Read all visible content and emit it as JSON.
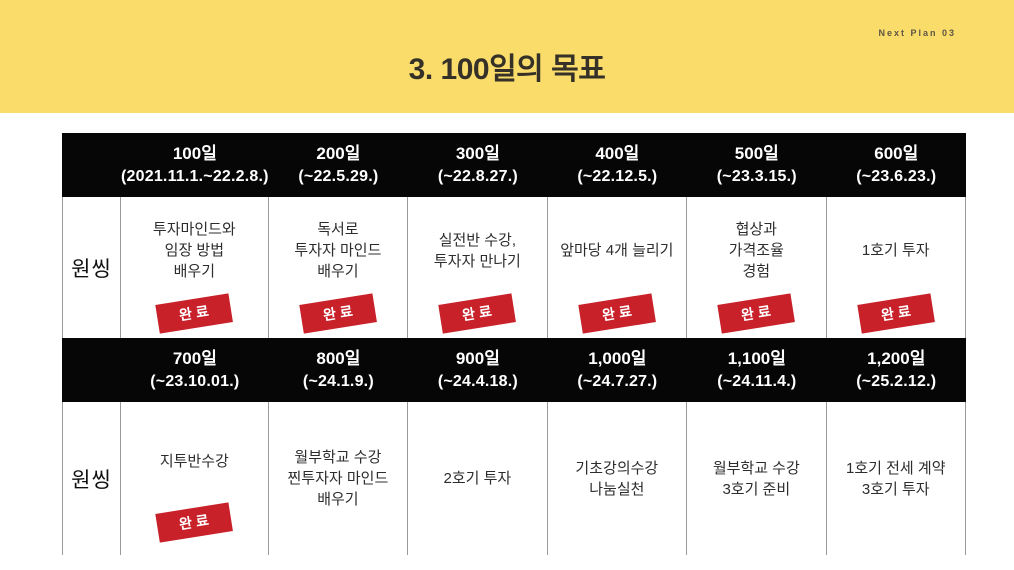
{
  "page": {
    "brand": "Next Plan 03",
    "title": "3. 100일의 목표",
    "colors": {
      "band": "#F9DC6A",
      "header_bg": "#060606",
      "stamp_red": "#C8212A"
    }
  },
  "table": {
    "row_label": "원씽",
    "sections": [
      {
        "headers": [
          {
            "days": "100일",
            "range": "(2021.11.1.~22.2.8.)"
          },
          {
            "days": "200일",
            "range": "(~22.5.29.)"
          },
          {
            "days": "300일",
            "range": "(~22.8.27.)"
          },
          {
            "days": "400일",
            "range": "(~22.12.5.)"
          },
          {
            "days": "500일",
            "range": "(~23.3.15.)"
          },
          {
            "days": "600일",
            "range": "(~23.6.23.)"
          }
        ],
        "cells": [
          {
            "text": "투자마인드와\n임장 방법\n배우기",
            "stamp": "완료"
          },
          {
            "text": "독서로\n투자자 마인드\n배우기",
            "stamp": "완료"
          },
          {
            "text": "실전반 수강,\n투자자 만나기",
            "stamp": "완료"
          },
          {
            "text": "앞마당 4개 늘리기",
            "stamp": "완료"
          },
          {
            "text": "협상과\n가격조율\n경험",
            "stamp": "완료"
          },
          {
            "text": "1호기 투자",
            "stamp": "완료"
          }
        ]
      },
      {
        "headers": [
          {
            "days": "700일",
            "range": "(~23.10.01.)"
          },
          {
            "days": "800일",
            "range": "(~24.1.9.)"
          },
          {
            "days": "900일",
            "range": "(~24.4.18.)"
          },
          {
            "days": "1,000일",
            "range": "(~24.7.27.)"
          },
          {
            "days": "1,100일",
            "range": "(~24.11.4.)"
          },
          {
            "days": "1,200일",
            "range": "(~25.2.12.)"
          }
        ],
        "cells": [
          {
            "text": "지투반수강",
            "stamp": "완료"
          },
          {
            "text": "월부학교 수강\n찐투자자 마인드\n배우기"
          },
          {
            "text": "2호기 투자"
          },
          {
            "text": "기초강의수강\n나눔실천"
          },
          {
            "text": "월부학교 수강\n3호기 준비"
          },
          {
            "text": "1호기 전세 계약\n3호기 투자"
          }
        ]
      }
    ]
  }
}
